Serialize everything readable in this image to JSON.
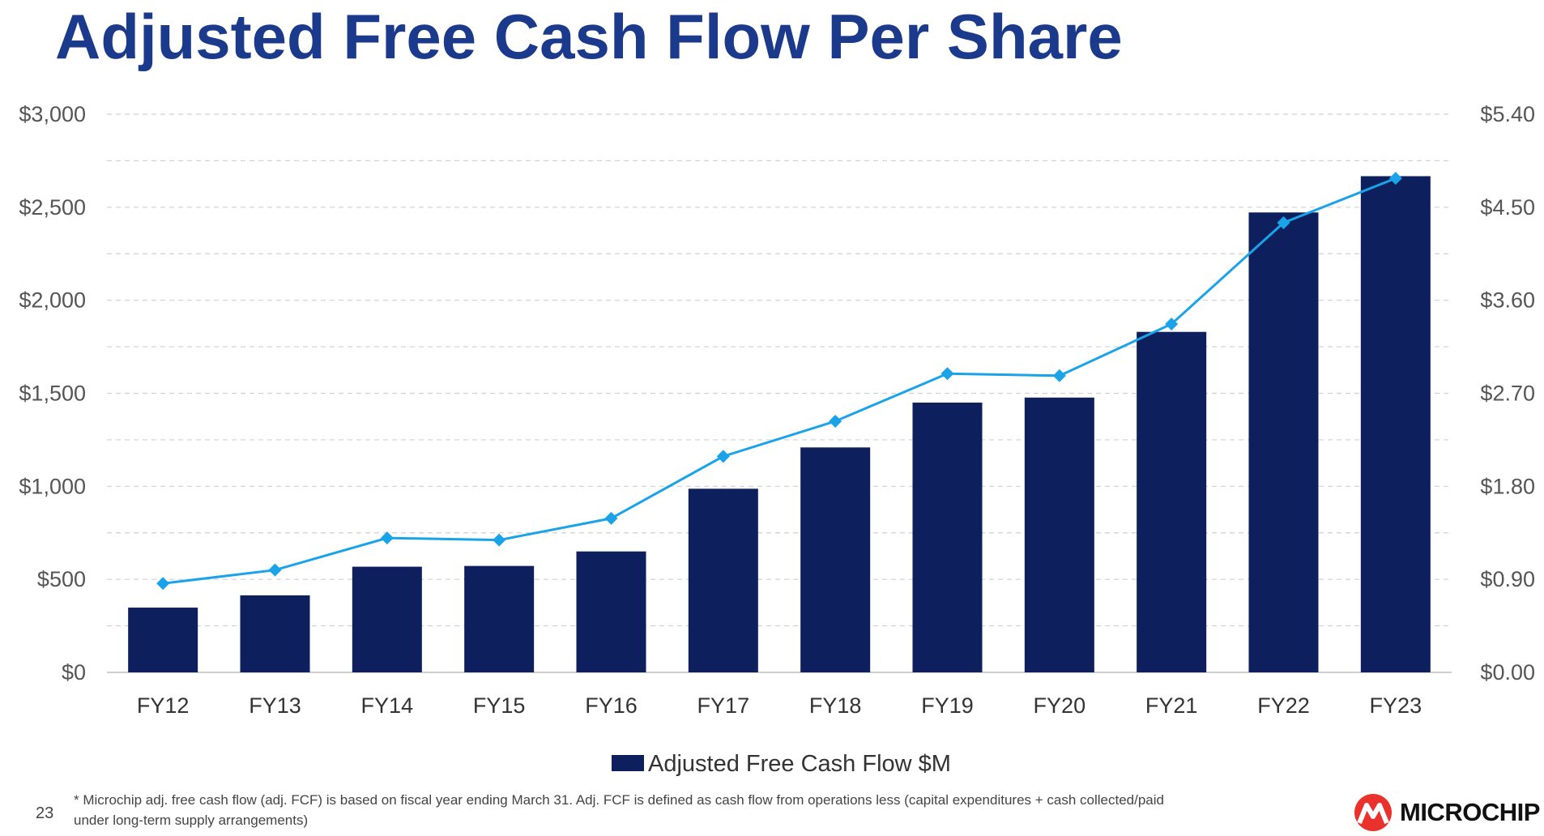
{
  "slide": {
    "title": "Adjusted Free Cash Flow Per Share",
    "page_number": "23",
    "footnote": "* Microchip adj. free cash flow (adj. FCF) is based on fiscal year ending March 31. Adj. FCF is defined as cash flow from operations less (capital expenditures + cash collected/paid under long-term supply arrangements)",
    "logo_text": "MICROCHIP",
    "logo_icon": "microchip-logo-icon"
  },
  "chart_data": {
    "type": "bar",
    "title": "Adjusted Free Cash Flow Per Share",
    "categories": [
      "FY12",
      "FY13",
      "FY14",
      "FY15",
      "FY16",
      "FY17",
      "FY18",
      "FY19",
      "FY20",
      "FY21",
      "FY22",
      "FY23"
    ],
    "series": [
      {
        "name": "Adjusted Free Cash Flow $M",
        "type": "bar",
        "axis": "left",
        "color": "#0d1f5c",
        "values": [
          348,
          414,
          568,
          572,
          650,
          987,
          1209,
          1450,
          1477,
          1830,
          2472,
          2667
        ]
      },
      {
        "type": "line",
        "axis": "right",
        "color": "#1aa3e8",
        "marker": "diamond",
        "values": [
          0.86,
          0.99,
          1.3,
          1.28,
          1.49,
          2.09,
          2.43,
          2.89,
          2.87,
          3.37,
          4.35,
          4.78
        ]
      }
    ],
    "y_left": {
      "min": 0,
      "max": 3000,
      "ticks": [
        0,
        500,
        1000,
        1500,
        2000,
        2500,
        3000
      ],
      "tick_labels": [
        "$0",
        "$500",
        "$1,000",
        "$1,500",
        "$2,000",
        "$2,500",
        "$3,000"
      ]
    },
    "y_right": {
      "min": 0,
      "max": 5.4,
      "ticks": [
        0,
        0.9,
        1.8,
        2.7,
        3.6,
        4.5,
        5.4
      ],
      "tick_labels": [
        "$0.00",
        "$0.90",
        "$1.80",
        "$2.70",
        "$3.60",
        "$4.50",
        "$5.40"
      ]
    },
    "grid": "dashed-horizontal",
    "legend_position": "bottom-center"
  }
}
